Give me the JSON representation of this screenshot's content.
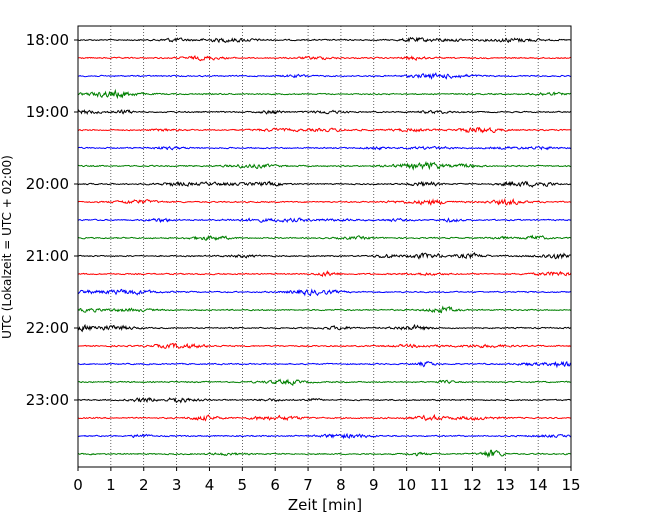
{
  "chart_data": {
    "type": "line",
    "chart_kind": "helicorder / seismogram drum plot",
    "xlabel": "Zeit  [min]",
    "ylabel": "UTC (Lokalzeit = UTC + 02:00)",
    "xlim": [
      0,
      15
    ],
    "x_ticks": [
      "0",
      "1",
      "2",
      "3",
      "4",
      "5",
      "6",
      "7",
      "8",
      "9",
      "10",
      "11",
      "12",
      "13",
      "14",
      "15"
    ],
    "y_ticks": [
      "18:00",
      "19:00",
      "20:00",
      "21:00",
      "22:00",
      "23:00"
    ],
    "grid": {
      "vertical_dotted": true
    },
    "trace_colors": [
      "#000000",
      "#ff0000",
      "#0000ff",
      "#008000"
    ],
    "traces_per_hour": 4,
    "minutes_per_trace": 15,
    "series": [
      {
        "start": "18:00",
        "color": "#000000"
      },
      {
        "start": "18:15",
        "color": "#ff0000"
      },
      {
        "start": "18:30",
        "color": "#0000ff"
      },
      {
        "start": "18:45",
        "color": "#008000"
      },
      {
        "start": "19:00",
        "color": "#000000"
      },
      {
        "start": "19:15",
        "color": "#ff0000"
      },
      {
        "start": "19:30",
        "color": "#0000ff"
      },
      {
        "start": "19:45",
        "color": "#008000"
      },
      {
        "start": "20:00",
        "color": "#000000"
      },
      {
        "start": "20:15",
        "color": "#ff0000"
      },
      {
        "start": "20:30",
        "color": "#0000ff"
      },
      {
        "start": "20:45",
        "color": "#008000"
      },
      {
        "start": "21:00",
        "color": "#000000"
      },
      {
        "start": "21:15",
        "color": "#ff0000"
      },
      {
        "start": "21:30",
        "color": "#0000ff"
      },
      {
        "start": "21:45",
        "color": "#008000"
      },
      {
        "start": "22:00",
        "color": "#000000"
      },
      {
        "start": "22:15",
        "color": "#ff0000"
      },
      {
        "start": "22:30",
        "color": "#0000ff"
      },
      {
        "start": "22:45",
        "color": "#008000"
      },
      {
        "start": "23:00",
        "color": "#000000"
      },
      {
        "start": "23:15",
        "color": "#ff0000"
      },
      {
        "start": "23:30",
        "color": "#0000ff"
      },
      {
        "start": "23:45",
        "color": "#008000"
      }
    ]
  }
}
